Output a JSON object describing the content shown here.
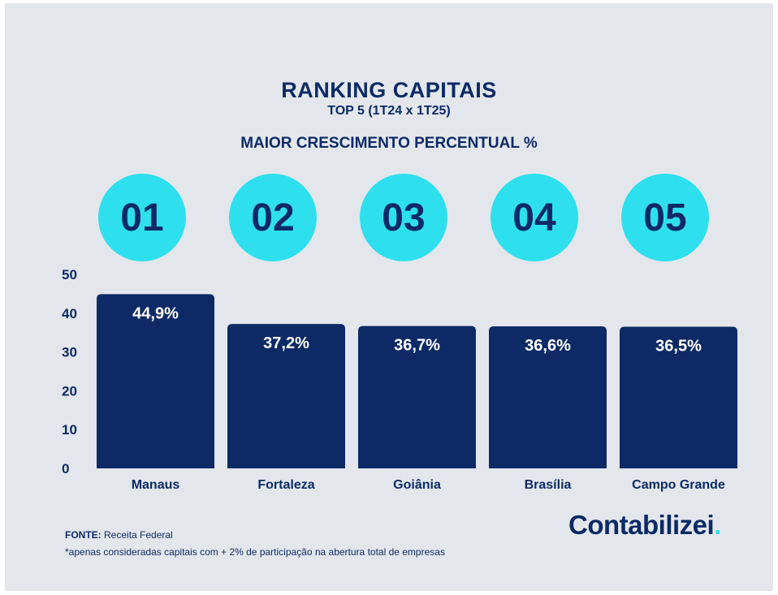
{
  "header": {
    "title": "RANKING CAPITAIS",
    "subtitle": "TOP 5 (1T24 x 1T25)",
    "metric": "MAIOR CRESCIMENTO PERCENTUAL %"
  },
  "ranks": [
    "01",
    "02",
    "03",
    "04",
    "05"
  ],
  "chart_data": {
    "type": "bar",
    "categories": [
      "Manaus",
      "Fortaleza",
      "Goiânia",
      "Brasília",
      "Campo Grande"
    ],
    "values": [
      44.9,
      37.2,
      36.7,
      36.6,
      36.5
    ],
    "data_labels": [
      "44,9%",
      "37,2%",
      "36,7%",
      "36,6%",
      "36,5%"
    ],
    "yticks": [
      0,
      10,
      20,
      30,
      40,
      50
    ],
    "ylim": [
      0,
      50
    ],
    "grid": false,
    "bar_color": "#0d2a66",
    "label_color": "#ffffff"
  },
  "footer": {
    "source_label": "FONTE:",
    "source": "Receita Federal",
    "note": "*apenas consideradas capitais com + 2% de participação na abertura total de empresas"
  },
  "brand": {
    "name": "Contabilizei",
    "dot": ".",
    "accent": "#2ee0ee"
  }
}
